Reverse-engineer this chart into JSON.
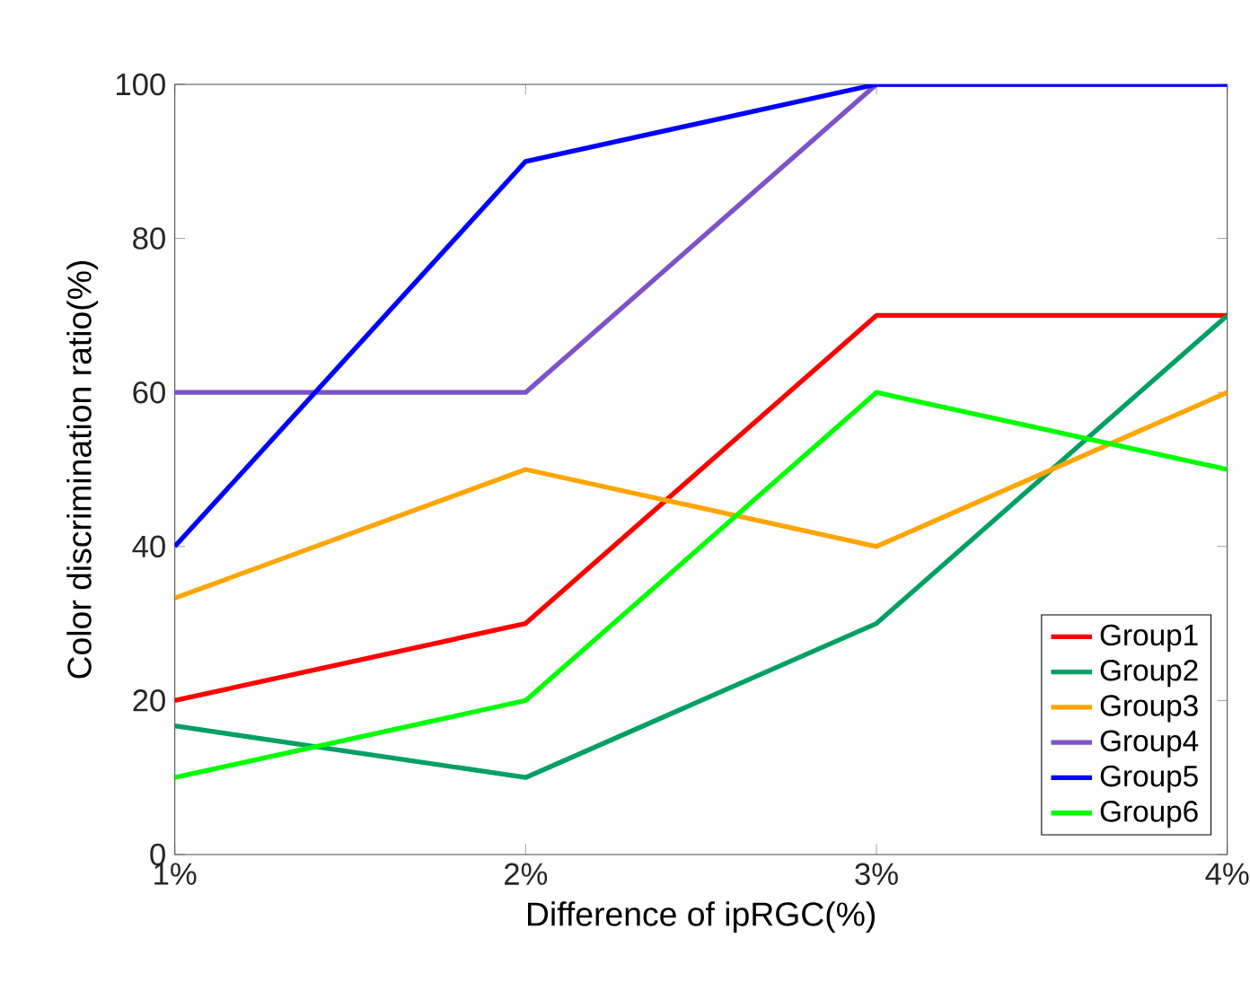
{
  "chart_data": {
    "type": "line",
    "xlabel": "Difference of ipRGC(%)",
    "ylabel": "Color discrimination ratio(%)",
    "x": [
      1,
      2,
      3,
      4
    ],
    "xlim": [
      1,
      4
    ],
    "xticks": [
      {
        "value": 1,
        "label": "1%"
      },
      {
        "value": 2,
        "label": "2%"
      },
      {
        "value": 3,
        "label": "3%"
      },
      {
        "value": 4,
        "label": "4%"
      }
    ],
    "ylim": [
      0,
      100
    ],
    "yticks": [
      0,
      20,
      40,
      60,
      80,
      100
    ],
    "grid": false,
    "legend": "bottom right",
    "marker": "none",
    "line_style": "solid",
    "series": [
      {
        "name": "Group1",
        "color": "#ff0000",
        "values": [
          20,
          30,
          70,
          70
        ]
      },
      {
        "name": "Group2",
        "color": "#00a064",
        "values": [
          16.7,
          10,
          30,
          70
        ]
      },
      {
        "name": "Group3",
        "color": "#ffa500",
        "values": [
          33.3,
          50,
          40,
          60
        ]
      },
      {
        "name": "Group4",
        "color": "#7e52c8",
        "values": [
          60,
          60,
          100,
          100
        ]
      },
      {
        "name": "Group5",
        "color": "#0000ff",
        "values": [
          40,
          90,
          100,
          100
        ]
      },
      {
        "name": "Group6",
        "color": "#00ff00",
        "values": [
          10,
          20,
          60,
          50
        ]
      }
    ]
  }
}
